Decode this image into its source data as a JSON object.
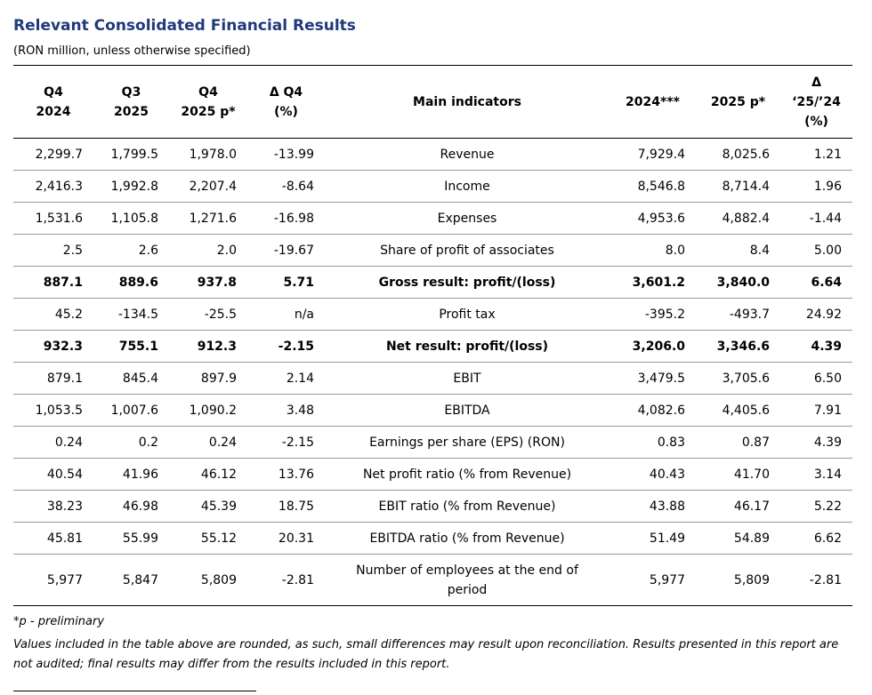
{
  "header": {
    "title": "Relevant Consolidated Financial Results",
    "subtitle": "(RON million, unless otherwise specified)"
  },
  "table": {
    "columns": [
      [
        "Q4",
        "2024"
      ],
      [
        "Q3",
        "2025"
      ],
      [
        "Q4",
        "2025 p*"
      ],
      [
        "Δ Q4",
        "(%)"
      ],
      [
        "Main indicators"
      ],
      [
        "2024***"
      ],
      [
        "2025 p*"
      ],
      [
        "Δ",
        "‘25/’24",
        "(%)"
      ]
    ],
    "rows": [
      [
        "2,299.7",
        "1,799.5",
        "1,978.0",
        "-13.99",
        "Revenue",
        "7,929.4",
        "8,025.6",
        "1.21"
      ],
      [
        "2,416.3",
        "1,992.8",
        "2,207.4",
        "-8.64",
        "Income",
        "8,546.8",
        "8,714.4",
        "1.96"
      ],
      [
        "1,531.6",
        "1,105.8",
        "1,271.6",
        "-16.98",
        "Expenses",
        "4,953.6",
        "4,882.4",
        "-1.44"
      ],
      [
        "2.5",
        "2.6",
        "2.0",
        "-19.67",
        "Share of profit of associates",
        "8.0",
        "8.4",
        "5.00"
      ],
      [
        "887.1",
        "889.6",
        "937.8",
        "5.71",
        "Gross result: profit/(loss)",
        "3,601.2",
        "3,840.0",
        "6.64"
      ],
      [
        "45.2",
        "-134.5",
        "-25.5",
        "n/a",
        "Profit tax",
        "-395.2",
        "-493.7",
        "24.92"
      ],
      [
        "932.3",
        "755.1",
        "912.3",
        "-2.15",
        "Net result: profit/(loss)",
        "3,206.0",
        "3,346.6",
        "4.39"
      ],
      [
        "879.1",
        "845.4",
        "897.9",
        "2.14",
        "EBIT",
        "3,479.5",
        "3,705.6",
        "6.50"
      ],
      [
        "1,053.5",
        "1,007.6",
        "1,090.2",
        "3.48",
        "EBITDA",
        "4,082.6",
        "4,405.6",
        "7.91"
      ],
      [
        "0.24",
        "0.2",
        "0.24",
        "-2.15",
        "Earnings per share (EPS) (RON)",
        "0.83",
        "0.87",
        "4.39"
      ],
      [
        "40.54",
        "41.96",
        "46.12",
        "13.76",
        "Net profit ratio (% from Revenue)",
        "40.43",
        "41.70",
        "3.14"
      ],
      [
        "38.23",
        "46.98",
        "45.39",
        "18.75",
        "EBIT ratio (% from Revenue)",
        "43.88",
        "46.17",
        "5.22"
      ],
      [
        "45.81",
        "55.99",
        "55.12",
        "20.31",
        "EBITDA ratio (% from Revenue)",
        "51.49",
        "54.89",
        "6.62"
      ],
      [
        "5,977",
        "5,847",
        "5,809",
        "-2.81",
        "Number of employees at the end of period",
        "5,977",
        "5,809",
        "-2.81"
      ]
    ]
  },
  "footnotes": [
    "*p - preliminary",
    "Values included in the table above are rounded, as such, small differences may result upon reconciliation. Results presented in this report are not audited; final results may differ from the results included in this report."
  ]
}
